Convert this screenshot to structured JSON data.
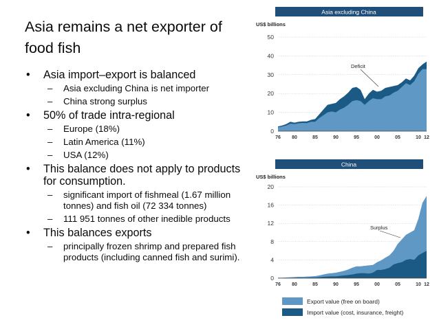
{
  "slide": {
    "title": "Asia remains a net exporter of food fish",
    "bullets": [
      {
        "text": "Asia import–export is balanced",
        "sub": [
          "Asia excluding China is net importer",
          "China strong surplus"
        ]
      },
      {
        "text": "50% of  trade intra-regional",
        "sub": [
          "Europe (18%)",
          "Latin America (11%)",
          "USA  (12%)"
        ]
      },
      {
        "text": "This balance does not apply to products for consumption.",
        "sub": [
          "significant import of fishmeal (1.67 million tonnes) and fish oil (72 334 tonnes)",
          "111 951 tonnes of other inedible products"
        ]
      },
      {
        "text": "This balances exports",
        "sub": [
          "principally frozen shrimp and prepared fish products (including canned fish and surimi)."
        ]
      }
    ]
  },
  "colors": {
    "export": "#5f98c4",
    "import": "#1a5a84",
    "banner": "#1f4f79"
  },
  "chart_data": [
    {
      "type": "area",
      "title": "Asia excluding China",
      "ylabel": "US$ billions",
      "annotation": "Deficit",
      "x": [
        1976,
        1977,
        1978,
        1979,
        1980,
        1981,
        1982,
        1983,
        1984,
        1985,
        1986,
        1987,
        1988,
        1989,
        1990,
        1991,
        1992,
        1993,
        1994,
        1995,
        1996,
        1997,
        1998,
        1999,
        2000,
        2001,
        2002,
        2003,
        2004,
        2005,
        2006,
        2007,
        2008,
        2009,
        2010,
        2011,
        2012
      ],
      "xticks": [
        "76",
        "80",
        "85",
        "90",
        "95",
        "00",
        "05",
        "10",
        "12"
      ],
      "xtick_values": [
        1976,
        1980,
        1985,
        1990,
        1995,
        2000,
        2005,
        2010,
        2012
      ],
      "yticks": [
        0,
        10,
        20,
        30,
        40,
        50
      ],
      "ylim": [
        0,
        50
      ],
      "series": [
        {
          "name": "Import value (cost, insurance, freight)",
          "values": [
            2.5,
            3.0,
            3.8,
            5.0,
            4.5,
            5.0,
            5.2,
            5.2,
            6.0,
            6.5,
            9.0,
            11.5,
            14.0,
            14.5,
            15.0,
            17.0,
            18.5,
            20.5,
            23.0,
            23.5,
            22.0,
            17.0,
            20.0,
            22.0,
            21.0,
            21.5,
            23.0,
            23.5,
            24.0,
            24.5,
            26.0,
            28.0,
            27.0,
            29.5,
            33.5,
            35.5,
            37.0
          ]
        },
        {
          "name": "Export value (free on board)",
          "values": [
            2.0,
            2.5,
            3.0,
            4.0,
            3.8,
            4.2,
            4.4,
            4.3,
            5.0,
            5.0,
            7.0,
            8.5,
            10.0,
            10.5,
            10.0,
            11.5,
            12.5,
            14.0,
            16.0,
            16.5,
            16.0,
            14.0,
            16.0,
            17.5,
            17.0,
            17.0,
            18.5,
            19.0,
            20.5,
            21.5,
            23.5,
            25.5,
            24.5,
            26.5,
            30.5,
            33.0,
            33.0
          ]
        }
      ]
    },
    {
      "type": "area",
      "title": "China",
      "ylabel": "US$ billions",
      "annotation": "Surplus",
      "x": [
        1976,
        1977,
        1978,
        1979,
        1980,
        1981,
        1982,
        1983,
        1984,
        1985,
        1986,
        1987,
        1988,
        1989,
        1990,
        1991,
        1992,
        1993,
        1994,
        1995,
        1996,
        1997,
        1998,
        1999,
        2000,
        2001,
        2002,
        2003,
        2004,
        2005,
        2006,
        2007,
        2008,
        2009,
        2010,
        2011,
        2012
      ],
      "xticks": [
        "76",
        "80",
        "85",
        "90",
        "95",
        "00",
        "05",
        "10",
        "12"
      ],
      "xtick_values": [
        1976,
        1980,
        1985,
        1990,
        1995,
        2000,
        2005,
        2010,
        2012
      ],
      "yticks": [
        0,
        4,
        8,
        12,
        16,
        20
      ],
      "ylim": [
        0,
        20
      ],
      "series": [
        {
          "name": "Export value (free on board)",
          "values": [
            0.1,
            0.1,
            0.15,
            0.2,
            0.25,
            0.3,
            0.3,
            0.35,
            0.4,
            0.45,
            0.6,
            0.8,
            1.0,
            1.1,
            1.2,
            1.4,
            1.6,
            1.9,
            2.3,
            2.6,
            2.6,
            2.7,
            2.8,
            2.9,
            3.5,
            3.9,
            4.5,
            5.0,
            6.0,
            7.5,
            8.5,
            9.5,
            10.0,
            10.5,
            13.0,
            16.5,
            18.0
          ]
        },
        {
          "name": "Import value (cost, insurance, freight)",
          "values": [
            0.05,
            0.05,
            0.05,
            0.05,
            0.1,
            0.1,
            0.1,
            0.1,
            0.15,
            0.15,
            0.2,
            0.3,
            0.35,
            0.4,
            0.4,
            0.5,
            0.6,
            0.7,
            0.8,
            1.0,
            1.1,
            1.1,
            1.0,
            1.2,
            1.8,
            1.8,
            2.0,
            2.3,
            3.0,
            3.3,
            3.5,
            4.0,
            4.2,
            4.0,
            5.0,
            5.5,
            6.0
          ]
        }
      ]
    }
  ],
  "legend": [
    {
      "label": "Export value (free on board)",
      "color": "#5f98c4"
    },
    {
      "label": "Import value (cost, insurance, freight)",
      "color": "#1a5a84"
    }
  ]
}
